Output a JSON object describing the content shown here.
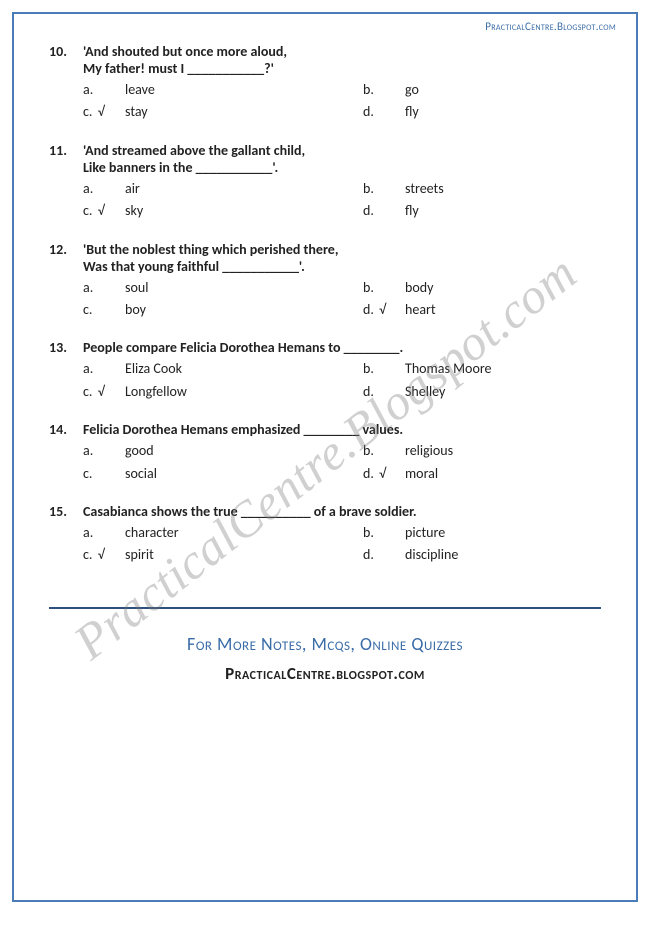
{
  "header_url": "PracticalCentre.Blogspot.com",
  "watermark": "PracticalCentre.Blogspot.com",
  "questions": [
    {
      "num": "10.",
      "text_l1": "'And shouted but once more aloud,",
      "text_l2": "My father! must I ___________?'",
      "a": {
        "letter": "a.",
        "check": "",
        "text": "leave"
      },
      "b": {
        "letter": "b.",
        "check": "",
        "text": "go"
      },
      "c": {
        "letter": "c.",
        "check": "√",
        "text": "stay"
      },
      "d": {
        "letter": "d.",
        "check": "",
        "text": "fly"
      }
    },
    {
      "num": "11.",
      "text_l1": "'And streamed above the gallant child,",
      "text_l2": "Like banners in the ___________'.",
      "a": {
        "letter": "a.",
        "check": "",
        "text": "air"
      },
      "b": {
        "letter": "b.",
        "check": "",
        "text": "streets"
      },
      "c": {
        "letter": "c.",
        "check": "√",
        "text": "sky"
      },
      "d": {
        "letter": "d.",
        "check": "",
        "text": "fly"
      }
    },
    {
      "num": "12.",
      "text_l1": "'But the noblest thing which perished there,",
      "text_l2": "Was that young faithful ___________'.",
      "a": {
        "letter": "a.",
        "check": "",
        "text": "soul"
      },
      "b": {
        "letter": "b.",
        "check": "",
        "text": "body"
      },
      "c": {
        "letter": "c.",
        "check": "",
        "text": "boy"
      },
      "d": {
        "letter": "d.",
        "check": "√",
        "text": "heart"
      }
    },
    {
      "num": "13.",
      "text_l1": "People compare Felicia Dorothea Hemans to ________.",
      "text_l2": "",
      "a": {
        "letter": "a.",
        "check": "",
        "text": "Eliza Cook"
      },
      "b": {
        "letter": "b.",
        "check": "",
        "text": "Thomas Moore"
      },
      "c": {
        "letter": "c.",
        "check": "√",
        "text": "Longfellow"
      },
      "d": {
        "letter": "d.",
        "check": "",
        "text": "Shelley"
      }
    },
    {
      "num": "14.",
      "text_l1": "Felicia Dorothea Hemans emphasized ________ values.",
      "text_l2": "",
      "a": {
        "letter": "a.",
        "check": "",
        "text": "good"
      },
      "b": {
        "letter": "b.",
        "check": "",
        "text": "religious"
      },
      "c": {
        "letter": "c.",
        "check": "",
        "text": "social"
      },
      "d": {
        "letter": "d.",
        "check": "√",
        "text": "moral"
      }
    },
    {
      "num": "15.",
      "text_l1": "Casabianca shows the true __________ of a brave soldier.",
      "text_l2": "",
      "a": {
        "letter": "a.",
        "check": "",
        "text": "character"
      },
      "b": {
        "letter": "b.",
        "check": "",
        "text": "picture"
      },
      "c": {
        "letter": "c.",
        "check": "√",
        "text": "spirit"
      },
      "d": {
        "letter": "d.",
        "check": "",
        "text": "discipline"
      }
    }
  ],
  "footer": {
    "line1": "For More Notes, Mcqs, Online Quizzes",
    "line2": "PracticalCentre.blogspot.com"
  },
  "colors": {
    "border": "#4a7cb8",
    "header_text": "#3a6ca8",
    "body_text": "#222222",
    "divider": "#2c4f7c",
    "watermark": "rgba(120,120,120,0.35)"
  }
}
